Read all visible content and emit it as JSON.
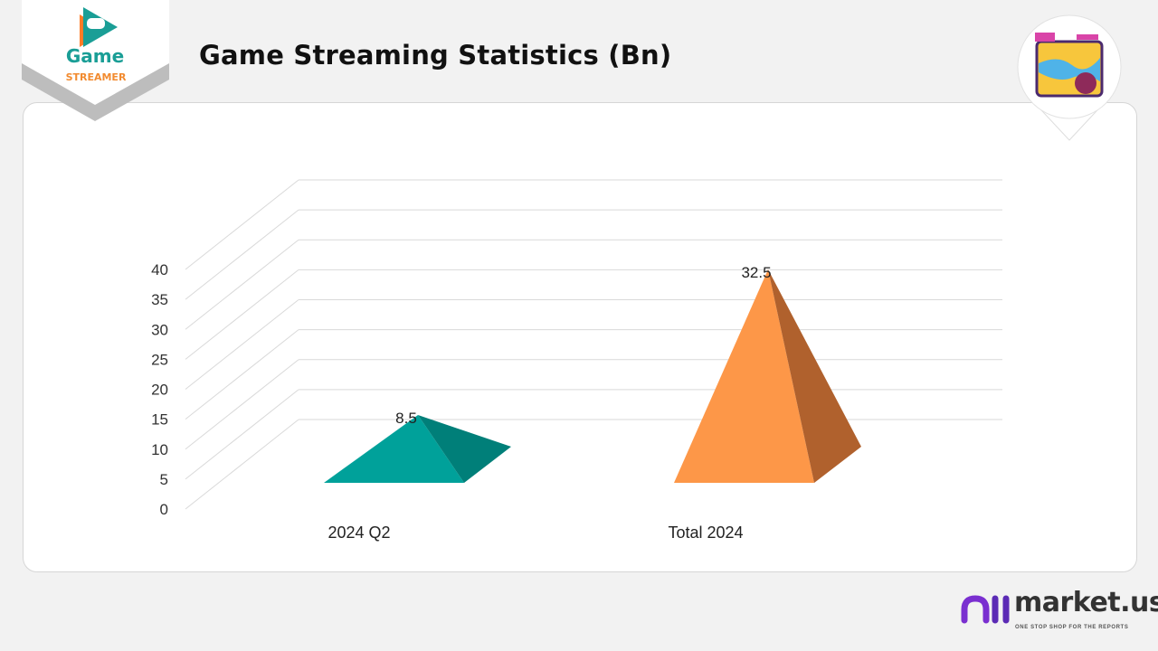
{
  "header": {
    "title": "Game Streaming Statistics (Bn)",
    "logo_text": "Game",
    "logo_subtext": "STREAMER"
  },
  "footer": {
    "brand": "market.us",
    "tagline": "ONE STOP SHOP FOR THE REPORTS"
  },
  "colors": {
    "teal": "#00a19a",
    "teal_dark": "#007f79",
    "orange": "#fd9748",
    "orange_dark": "#b0612d",
    "grid": "#d9d9d9"
  },
  "chart_data": {
    "type": "bar",
    "style": "3d-pyramid",
    "title": "Game Streaming Statistics (Bn)",
    "categories": [
      "2024 Q2",
      "Total 2024"
    ],
    "values": [
      8.5,
      32.5
    ],
    "data_labels": [
      "8.5",
      "32.5"
    ],
    "bar_colors": [
      "#00a19a",
      "#fd9748"
    ],
    "ylim": [
      0,
      40
    ],
    "yticks": [
      "0",
      "5",
      "10",
      "15",
      "20",
      "25",
      "30",
      "35",
      "40"
    ],
    "grid": true,
    "legend": "none"
  }
}
